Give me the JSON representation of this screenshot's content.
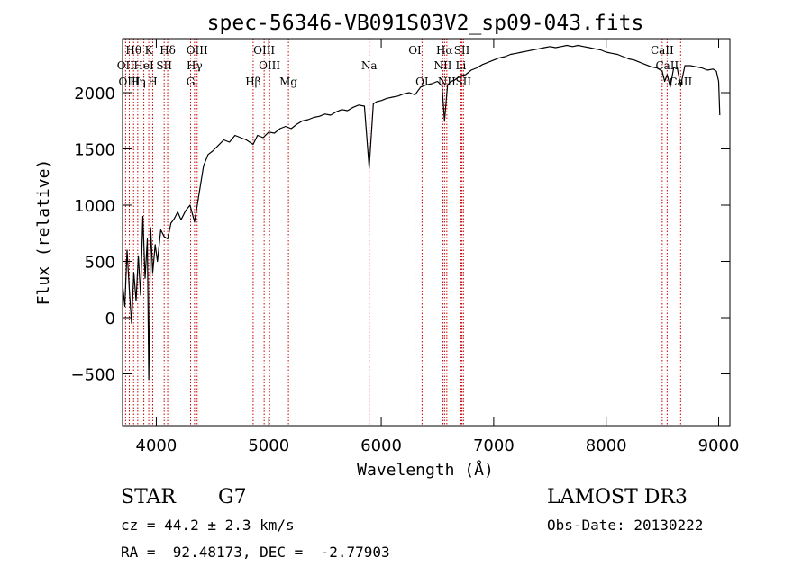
{
  "chart_data": {
    "type": "line",
    "title": "spec-56346-VB091S03V2_sp09-043.fits",
    "xlabel": "Wavelength (Å)",
    "ylabel": "Flux (relative)",
    "xlim": [
      3700,
      9100
    ],
    "ylim": [
      -960,
      2480
    ],
    "xticks": [
      4000,
      5000,
      6000,
      7000,
      8000,
      9000
    ],
    "yticks": [
      -500,
      0,
      500,
      1000,
      1500,
      2000
    ],
    "grid": false,
    "legend": "none",
    "series_color": "#000000",
    "line_color": "#cc0000",
    "series": [
      {
        "x": [
          3700,
          3720,
          3740,
          3760,
          3780,
          3800,
          3820,
          3840,
          3860,
          3880,
          3900,
          3920,
          3933,
          3950,
          3968,
          3990,
          4010,
          4040,
          4070,
          4101,
          4130,
          4160,
          4190,
          4220,
          4260,
          4300,
          4340,
          4380,
          4420,
          4460,
          4500,
          4550,
          4600,
          4650,
          4700,
          4750,
          4800,
          4861,
          4900,
          4950,
          5000,
          5050,
          5100,
          5150,
          5200,
          5250,
          5300,
          5350,
          5400,
          5450,
          5500,
          5550,
          5600,
          5650,
          5700,
          5750,
          5800,
          5850,
          5893,
          5930,
          5960,
          6000,
          6050,
          6100,
          6150,
          6200,
          6250,
          6300,
          6350,
          6400,
          6450,
          6500,
          6540,
          6563,
          6590,
          6620,
          6650,
          6700,
          6750,
          6800,
          6850,
          6900,
          6950,
          7000,
          7050,
          7100,
          7150,
          7200,
          7250,
          7300,
          7350,
          7400,
          7450,
          7500,
          7550,
          7600,
          7650,
          7700,
          7750,
          7800,
          7850,
          7900,
          7950,
          8000,
          8050,
          8100,
          8150,
          8200,
          8250,
          8300,
          8350,
          8400,
          8450,
          8498,
          8520,
          8542,
          8570,
          8600,
          8630,
          8662,
          8700,
          8750,
          8800,
          8850,
          8900,
          8950,
          8980,
          9000,
          9010
        ],
        "y": [
          300,
          100,
          600,
          250,
          -50,
          400,
          150,
          550,
          200,
          900,
          350,
          700,
          -550,
          800,
          400,
          650,
          500,
          780,
          720,
          700,
          840,
          880,
          940,
          870,
          950,
          1000,
          850,
          1100,
          1350,
          1450,
          1480,
          1530,
          1580,
          1560,
          1620,
          1600,
          1580,
          1540,
          1620,
          1600,
          1650,
          1640,
          1680,
          1700,
          1680,
          1720,
          1750,
          1760,
          1780,
          1790,
          1810,
          1800,
          1830,
          1850,
          1840,
          1870,
          1890,
          1880,
          1330,
          1900,
          1920,
          1930,
          1950,
          1960,
          1970,
          1990,
          2000,
          1980,
          2050,
          2070,
          2080,
          2100,
          2060,
          1750,
          2070,
          2100,
          2110,
          2150,
          2160,
          2200,
          2220,
          2250,
          2270,
          2290,
          2310,
          2320,
          2340,
          2350,
          2360,
          2370,
          2380,
          2390,
          2400,
          2410,
          2400,
          2410,
          2420,
          2410,
          2420,
          2410,
          2400,
          2390,
          2380,
          2360,
          2350,
          2340,
          2320,
          2300,
          2290,
          2270,
          2250,
          2230,
          2220,
          2190,
          2100,
          2160,
          2050,
          2220,
          2230,
          2060,
          2240,
          2240,
          2230,
          2220,
          2200,
          2210,
          2190,
          2100,
          1800
        ]
      }
    ],
    "lines": [
      {
        "label": "Hθ",
        "wavelength": 3798,
        "row": 0
      },
      {
        "label": "K",
        "wavelength": 3933,
        "row": 0
      },
      {
        "label": "Hδ",
        "wavelength": 4101,
        "row": 0
      },
      {
        "label": "OIII",
        "wavelength": 4363,
        "row": 0
      },
      {
        "label": "OIII",
        "wavelength": 4959,
        "row": 0
      },
      {
        "label": "OI",
        "wavelength": 6300,
        "row": 0
      },
      {
        "label": "Hα",
        "wavelength": 6563,
        "row": 0
      },
      {
        "label": "SII",
        "wavelength": 6717,
        "row": 0
      },
      {
        "label": "CaII",
        "wavelength": 8498,
        "row": 0
      },
      {
        "label": "OII",
        "wavelength": 3727,
        "row": 1
      },
      {
        "label": "HeI",
        "wavelength": 3889,
        "row": 1
      },
      {
        "label": "SII",
        "wavelength": 4070,
        "row": 1
      },
      {
        "label": "Hγ",
        "wavelength": 4340,
        "row": 1
      },
      {
        "label": "OIII",
        "wavelength": 5007,
        "row": 1
      },
      {
        "label": "Na",
        "wavelength": 5893,
        "row": 1
      },
      {
        "label": "NII",
        "wavelength": 6548,
        "row": 1
      },
      {
        "label": "Li",
        "wavelength": 6708,
        "row": 1
      },
      {
        "label": "CaII",
        "wavelength": 8542,
        "row": 1
      },
      {
        "label": "OIII",
        "wavelength": 3760,
        "row": 2
      },
      {
        "label": "Hη",
        "wavelength": 3835,
        "row": 2
      },
      {
        "label": "H",
        "wavelength": 3968,
        "row": 2
      },
      {
        "label": "G",
        "wavelength": 4305,
        "row": 2
      },
      {
        "label": "Hβ",
        "wavelength": 4861,
        "row": 2
      },
      {
        "label": "Mg",
        "wavelength": 5175,
        "row": 2
      },
      {
        "label": "OI",
        "wavelength": 6363,
        "row": 2
      },
      {
        "label": "NII",
        "wavelength": 6583,
        "row": 2
      },
      {
        "label": "SII",
        "wavelength": 6731,
        "row": 2
      },
      {
        "label": "CaII",
        "wavelength": 8662,
        "row": 2
      }
    ]
  },
  "footer": {
    "object_class": "STAR",
    "subclass": "G7",
    "survey": "LAMOST DR3",
    "cz": "cz = 44.2 ± 2.3 km/s",
    "obs_date": "Obs-Date: 20130222",
    "coords": "RA =  92.48173, DEC =  -2.77903"
  }
}
